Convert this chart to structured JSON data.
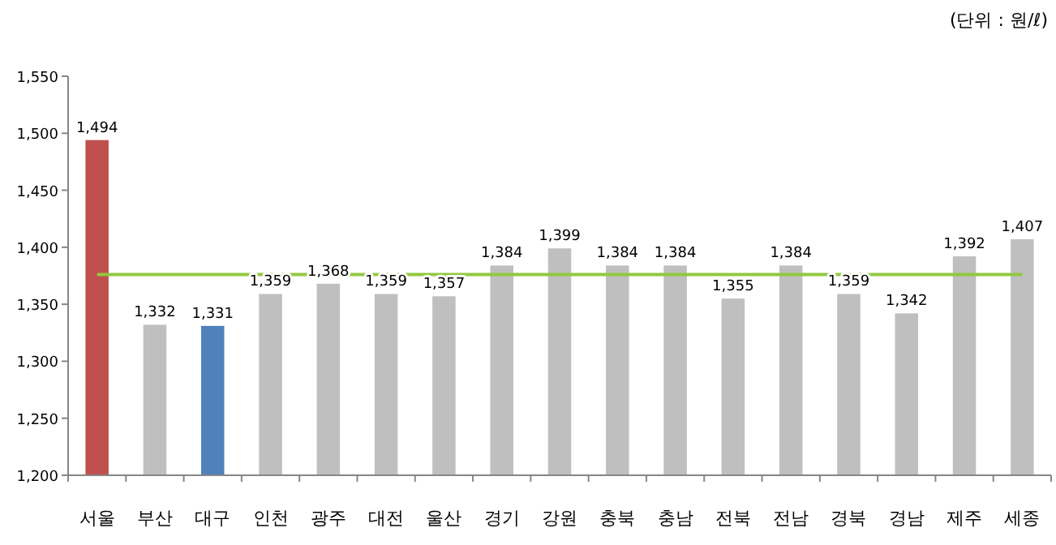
{
  "chart_data": {
    "type": "bar",
    "annotations": [
      "(단위 : 원/ℓ)"
    ],
    "categories": [
      "서울",
      "부산",
      "대구",
      "인천",
      "광주",
      "대전",
      "울산",
      "경기",
      "강원",
      "충북",
      "충남",
      "전북",
      "전남",
      "경북",
      "경남",
      "제주",
      "세종"
    ],
    "values": [
      1494,
      1332,
      1331,
      1359,
      1368,
      1359,
      1357,
      1384,
      1399,
      1384,
      1384,
      1355,
      1384,
      1359,
      1342,
      1392,
      1407
    ],
    "value_labels": [
      "1,494",
      "1,332",
      "1,331",
      "1,359",
      "1,368",
      "1,359",
      "1,357",
      "1,384",
      "1,399",
      "1,384",
      "1,384",
      "1,355",
      "1,384",
      "1,359",
      "1,342",
      "1,392",
      "1,407"
    ],
    "colors": [
      "#c0504d",
      "#bfbfbf",
      "#4f81bd",
      "#bfbfbf",
      "#bfbfbf",
      "#bfbfbf",
      "#bfbfbf",
      "#bfbfbf",
      "#bfbfbf",
      "#bfbfbf",
      "#bfbfbf",
      "#bfbfbf",
      "#bfbfbf",
      "#bfbfbf",
      "#bfbfbf",
      "#bfbfbf",
      "#bfbfbf"
    ],
    "ylim": [
      1200,
      1550
    ],
    "yticks": [
      {
        "value": 1200,
        "label": "1,200"
      },
      {
        "value": 1250,
        "label": "1,250"
      },
      {
        "value": 1300,
        "label": "1,300"
      },
      {
        "value": 1350,
        "label": "1,350"
      },
      {
        "value": 1400,
        "label": "1,400"
      },
      {
        "value": 1450,
        "label": "1,450"
      },
      {
        "value": 1500,
        "label": "1,500"
      },
      {
        "value": 1550,
        "label": "1,550"
      }
    ],
    "ref_lines": [
      {
        "axis": "y",
        "value": 1376,
        "color": "#92c83e"
      }
    ],
    "grid": false
  }
}
